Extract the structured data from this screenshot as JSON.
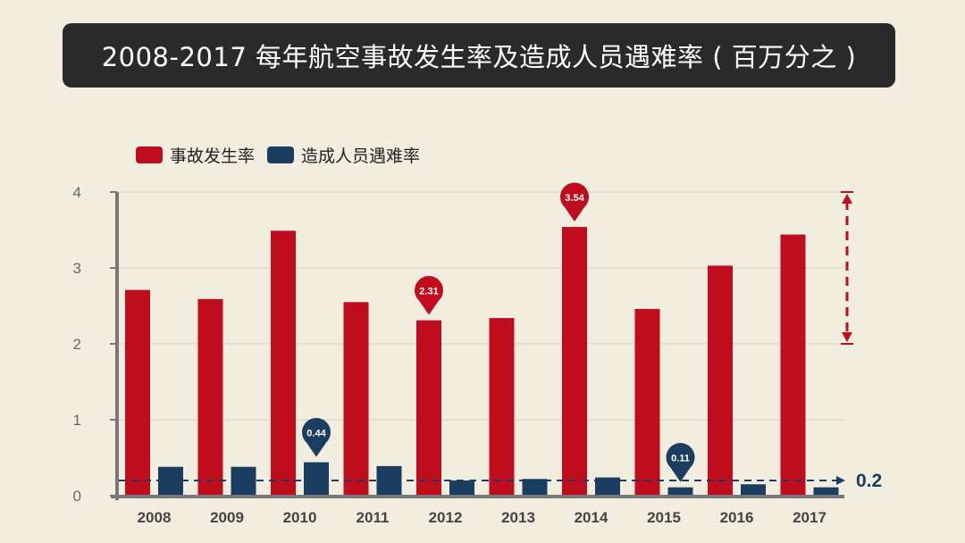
{
  "title": "2008-2017 每年航空事故发生率及造成人员遇难率 ( 百万分之 )",
  "chart_data": {
    "type": "bar",
    "categories": [
      "2008",
      "2009",
      "2010",
      "2011",
      "2012",
      "2013",
      "2014",
      "2015",
      "2016",
      "2017"
    ],
    "series": [
      {
        "name": "事故发生率",
        "color": "#c00d1e",
        "values": [
          2.71,
          2.59,
          3.49,
          2.55,
          2.31,
          2.34,
          3.54,
          2.46,
          3.03,
          3.44
        ]
      },
      {
        "name": "造成人员遇难率",
        "color": "#1b3d5f",
        "values": [
          0.38,
          0.38,
          0.44,
          0.39,
          0.2,
          0.22,
          0.24,
          0.11,
          0.15,
          0.11
        ]
      }
    ],
    "ylim": [
      0,
      4
    ],
    "yticks": [
      "0",
      "1",
      "2",
      "3",
      "4"
    ],
    "ytick_values": [
      0,
      1,
      2,
      3,
      4
    ],
    "grid": true,
    "legend_position": "top-left",
    "callouts": [
      {
        "series": 0,
        "index": 4,
        "label": "2.31"
      },
      {
        "series": 0,
        "index": 6,
        "label": "3.54"
      },
      {
        "series": 1,
        "index": 2,
        "label": "0.44"
      },
      {
        "series": 1,
        "index": 7,
        "label": "0.11"
      }
    ],
    "reference_line": {
      "value": 0.2,
      "label": "0.2"
    },
    "range_arrow": {
      "from": 2,
      "to": 4
    }
  }
}
